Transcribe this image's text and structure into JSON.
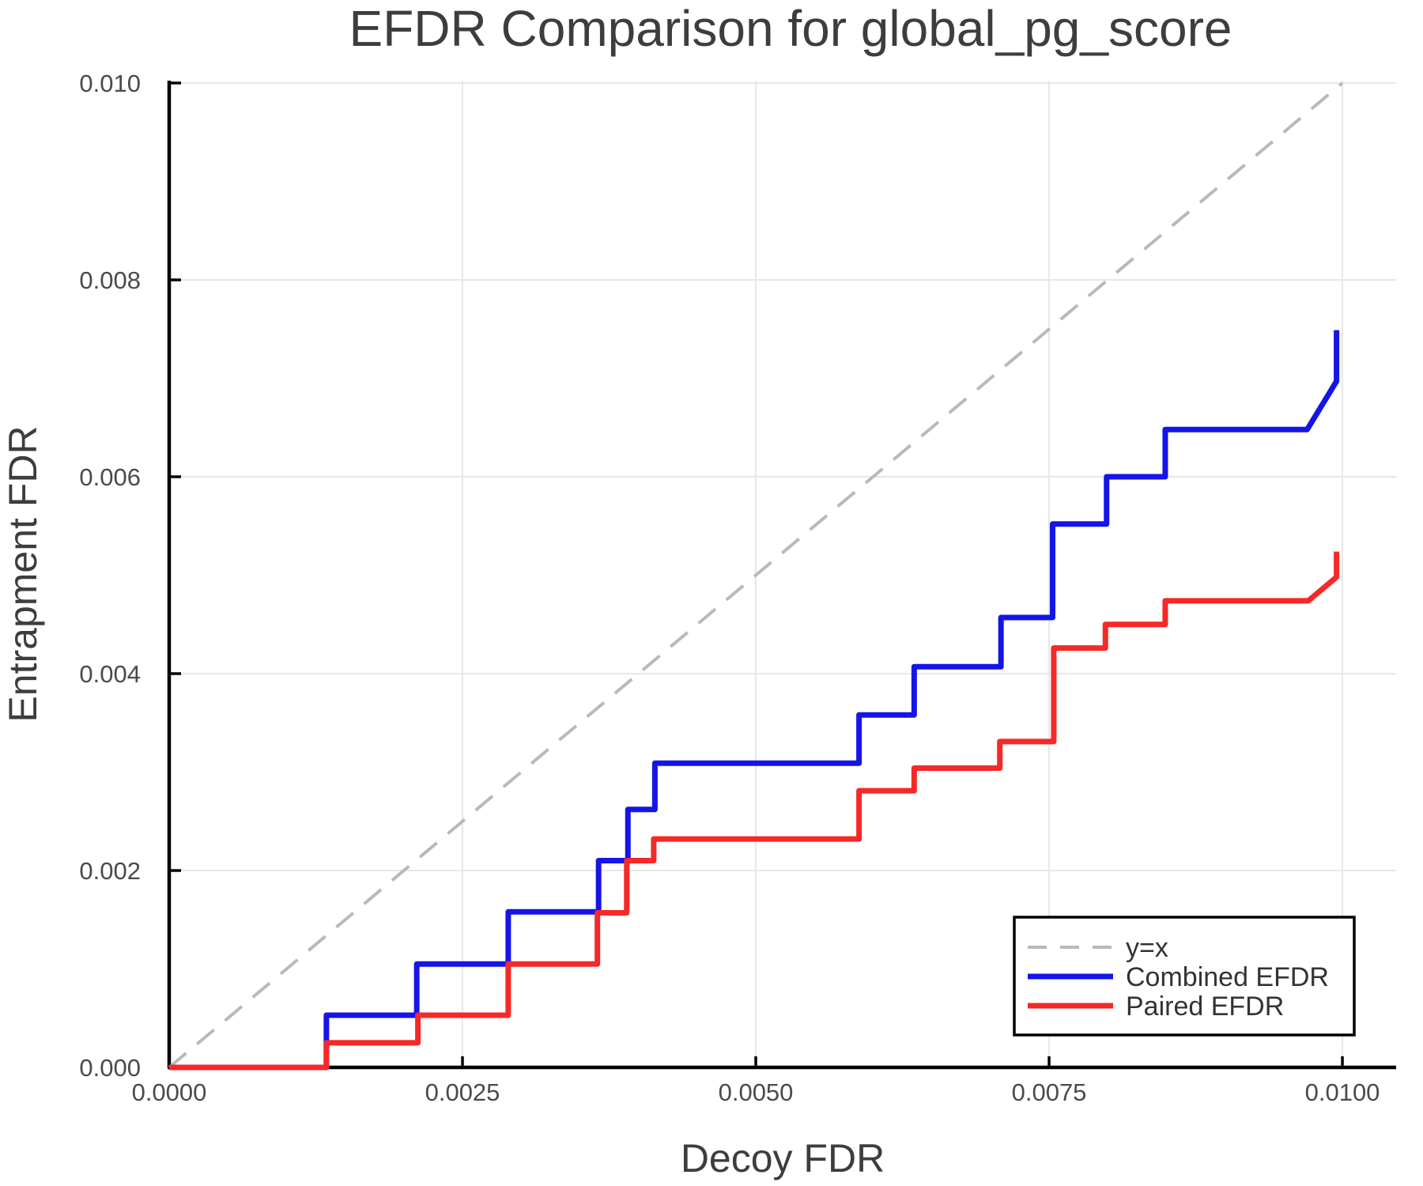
{
  "page": {
    "background": "#ffffff"
  },
  "chart_data": {
    "type": "line",
    "title": "EFDR Comparison for global_pg_score",
    "xlabel": "Decoy FDR",
    "ylabel": "Entrapment FDR",
    "xlim": [
      0,
      0.010458
    ],
    "ylim": [
      0,
      0.010024
    ],
    "grid": true,
    "x_ticks": {
      "values": [
        0.0,
        0.0025,
        0.005,
        0.0075,
        0.01
      ],
      "labels": [
        "0.0000",
        "0.0025",
        "0.0050",
        "0.0075",
        "0.0100"
      ]
    },
    "y_ticks": {
      "values": [
        0.0,
        0.002,
        0.004,
        0.006,
        0.008,
        0.01
      ],
      "labels": [
        "0.000",
        "0.002",
        "0.004",
        "0.006",
        "0.008",
        "0.010"
      ]
    },
    "legend": {
      "position": "lower right",
      "entries": [
        {
          "label": "y=x",
          "color": "#b9b9b9",
          "dashed": true,
          "width": 4
        },
        {
          "label": "Combined EFDR",
          "color": "#1515e8",
          "dashed": false,
          "width": 7
        },
        {
          "label": "Paired EFDR",
          "color": "#f62828",
          "dashed": false,
          "width": 7
        }
      ]
    },
    "series": [
      {
        "name": "y=x",
        "color": "#b9b9b9",
        "width": 4,
        "dash": "28 18",
        "points": [
          [
            0,
            0
          ],
          [
            0.01,
            0.01
          ]
        ]
      },
      {
        "name": "Combined EFDR",
        "color": "#1515e8",
        "width": 7,
        "dash": null,
        "points": [
          [
            0.0,
            0.0
          ],
          [
            0.00134,
            0.0
          ],
          [
            0.00134,
            0.00053
          ],
          [
            0.00211,
            0.00053
          ],
          [
            0.00211,
            0.00105
          ],
          [
            0.00289,
            0.00105
          ],
          [
            0.00289,
            0.00158
          ],
          [
            0.00366,
            0.00158
          ],
          [
            0.00366,
            0.0021
          ],
          [
            0.00391,
            0.0021
          ],
          [
            0.00391,
            0.00262
          ],
          [
            0.00414,
            0.00262
          ],
          [
            0.00414,
            0.00309
          ],
          [
            0.00588,
            0.00309
          ],
          [
            0.00588,
            0.00358
          ],
          [
            0.00635,
            0.00358
          ],
          [
            0.00635,
            0.00407
          ],
          [
            0.00709,
            0.00407
          ],
          [
            0.00709,
            0.00457
          ],
          [
            0.00753,
            0.00457
          ],
          [
            0.00753,
            0.00552
          ],
          [
            0.00799,
            0.00552
          ],
          [
            0.00799,
            0.006
          ],
          [
            0.00849,
            0.006
          ],
          [
            0.00849,
            0.00648
          ],
          [
            0.0097,
            0.00648
          ],
          [
            0.00995,
            0.00697
          ],
          [
            0.00995,
            0.00749
          ]
        ]
      },
      {
        "name": "Paired EFDR",
        "color": "#f62828",
        "width": 7,
        "dash": null,
        "points": [
          [
            0.0,
            0.0
          ],
          [
            0.00134,
            0.0
          ],
          [
            0.00134,
            0.00025
          ],
          [
            0.00212,
            0.00025
          ],
          [
            0.00212,
            0.00053
          ],
          [
            0.00289,
            0.00053
          ],
          [
            0.00289,
            0.00105
          ],
          [
            0.00365,
            0.00105
          ],
          [
            0.00365,
            0.00157
          ],
          [
            0.0039,
            0.00157
          ],
          [
            0.0039,
            0.0021
          ],
          [
            0.00413,
            0.0021
          ],
          [
            0.00413,
            0.00232
          ],
          [
            0.00588,
            0.00232
          ],
          [
            0.00588,
            0.00281
          ],
          [
            0.00635,
            0.00281
          ],
          [
            0.00635,
            0.00304
          ],
          [
            0.00708,
            0.00304
          ],
          [
            0.00708,
            0.00331
          ],
          [
            0.00754,
            0.00331
          ],
          [
            0.00754,
            0.00426
          ],
          [
            0.00798,
            0.00426
          ],
          [
            0.00798,
            0.0045
          ],
          [
            0.00849,
            0.0045
          ],
          [
            0.00849,
            0.00474
          ],
          [
            0.00971,
            0.00474
          ],
          [
            0.00995,
            0.00498
          ],
          [
            0.00995,
            0.00524
          ]
        ]
      }
    ],
    "colors": {
      "grid": "#e7e7e7",
      "spine": "#000000",
      "title_text": "#3d3d3d",
      "axis_label_text": "#3d3d3d",
      "tick_label_text": "#4a4a4a",
      "legend_text": "#333333",
      "legend_border": "#000000",
      "legend_background": "#ffffff"
    }
  }
}
